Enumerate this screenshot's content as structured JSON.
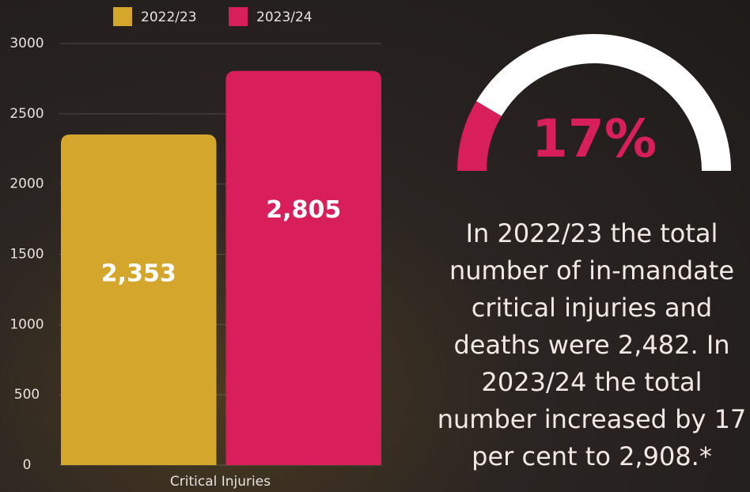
{
  "chart_data": [
    {
      "type": "bar",
      "categories": [
        "Critical Injuries"
      ],
      "series": [
        {
          "name": "2022/23",
          "color": "#d4a72c",
          "values": [
            2353
          ],
          "value_labels": [
            "2,353"
          ]
        },
        {
          "name": "2023/24",
          "color": "#d81f5c",
          "values": [
            2805
          ],
          "value_labels": [
            "2,805"
          ]
        }
      ],
      "ylim": [
        0,
        3000
      ],
      "yticks": [
        0,
        500,
        1000,
        1500,
        2000,
        2500,
        3000
      ],
      "grid": true,
      "legend": "top"
    },
    {
      "type": "gauge",
      "values": [
        17
      ],
      "value_labels": [
        "17%"
      ],
      "ylim": [
        0,
        100
      ],
      "color": "#d81f5c",
      "track_color": "#ffffff",
      "annotation": "In 2022/23 the total number of in-mandate critical injuries and deaths were 2,482. In 2023/24 the total number increased by 17 per cent to 2,908.*"
    }
  ]
}
